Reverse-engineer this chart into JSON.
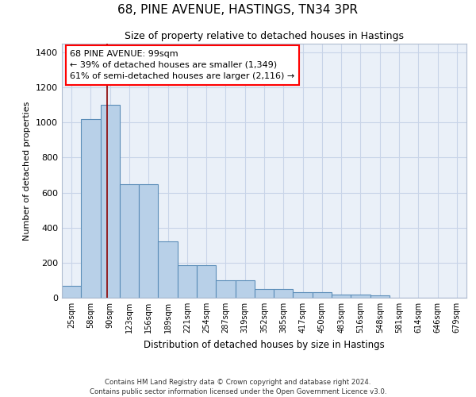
{
  "title1": "68, PINE AVENUE, HASTINGS, TN34 3PR",
  "title2": "Size of property relative to detached houses in Hastings",
  "xlabel": "Distribution of detached houses by size in Hastings",
  "ylabel": "Number of detached properties",
  "annotation_line1": "68 PINE AVENUE: 99sqm",
  "annotation_line2": "← 39% of detached houses are smaller (1,349)",
  "annotation_line3": "61% of semi-detached houses are larger (2,116) →",
  "bar_color": "#b8d0e8",
  "bar_edge_color": "#5b8db8",
  "bg_color": "#eaf0f8",
  "grid_color": "#c8d4e8",
  "categories": [
    "25sqm",
    "58sqm",
    "90sqm",
    "123sqm",
    "156sqm",
    "189sqm",
    "221sqm",
    "254sqm",
    "287sqm",
    "319sqm",
    "352sqm",
    "385sqm",
    "417sqm",
    "450sqm",
    "483sqm",
    "516sqm",
    "548sqm",
    "581sqm",
    "614sqm",
    "646sqm",
    "679sqm"
  ],
  "values": [
    70,
    1020,
    1100,
    650,
    650,
    320,
    185,
    185,
    100,
    100,
    50,
    50,
    30,
    30,
    20,
    20,
    15,
    0,
    0,
    0,
    0
  ],
  "red_line_x": 1.85,
  "ylim": [
    0,
    1450
  ],
  "yticks": [
    0,
    200,
    400,
    600,
    800,
    1000,
    1200,
    1400
  ],
  "footer_line1": "Contains HM Land Registry data © Crown copyright and database right 2024.",
  "footer_line2": "Contains public sector information licensed under the Open Government Licence v3.0."
}
